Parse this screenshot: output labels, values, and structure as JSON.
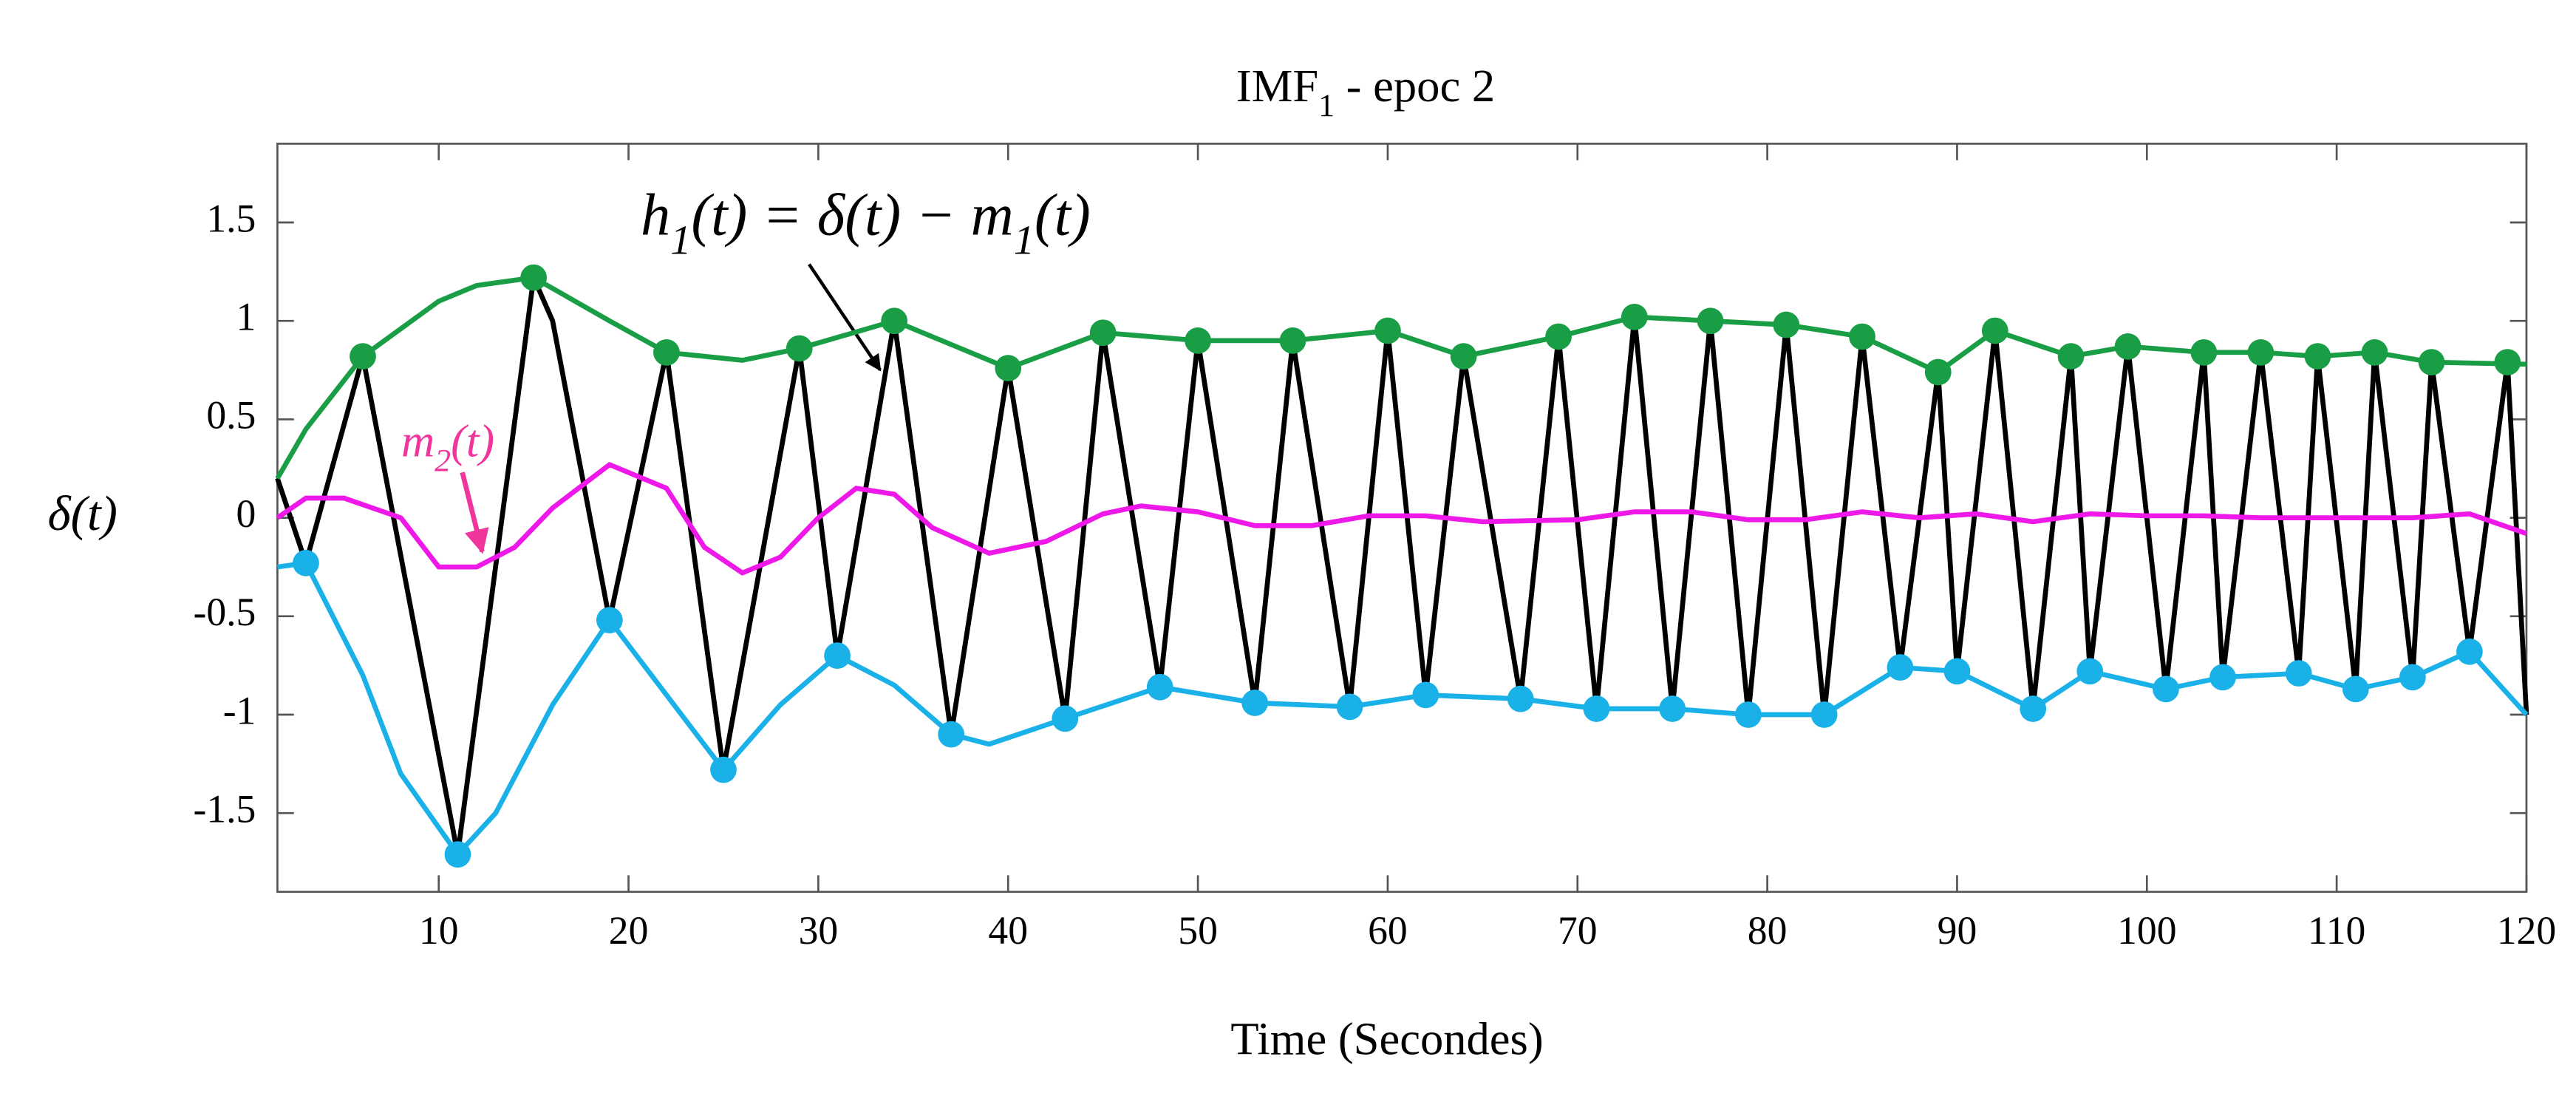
{
  "chart_data": {
    "type": "line",
    "title": {
      "parts": [
        "IMF",
        "1",
        " -  epoc 2"
      ]
    },
    "x_label": "Time (Secondes)",
    "y_label": "δ(t)",
    "annotations": [
      {
        "parts": [
          "h",
          "1",
          "(t) = δ(t) − m",
          "1",
          "(t)"
        ],
        "color": "#000000"
      },
      {
        "parts": [
          "m",
          "2",
          "(t)"
        ],
        "color": "#f0359c"
      }
    ],
    "xlim": [
      1.5,
      120
    ],
    "ylim": [
      -1.9,
      1.9
    ],
    "xticks": [
      10,
      20,
      30,
      40,
      50,
      60,
      70,
      80,
      90,
      100,
      110,
      120
    ],
    "yticks": [
      -1.5,
      -1,
      -0.5,
      0,
      0.5,
      1,
      1.5
    ],
    "grid": false,
    "series": [
      {
        "mode": "lines",
        "color": "#000000",
        "x": [
          1.5,
          3,
          6,
          11,
          15,
          16,
          19,
          22,
          25,
          29,
          31,
          34,
          37,
          40,
          43,
          45,
          48,
          50,
          53,
          55,
          58,
          60,
          62,
          64,
          67,
          69,
          71,
          73,
          75,
          77,
          79,
          81,
          83,
          85,
          87,
          89,
          90,
          92,
          94,
          96,
          97,
          99,
          101,
          103,
          104,
          106,
          108,
          109,
          111,
          112,
          114,
          115,
          117,
          119,
          120
        ],
        "values": [
          0.2,
          -0.23,
          0.82,
          -1.71,
          1.22,
          1.0,
          -0.52,
          0.84,
          -1.28,
          0.86,
          -0.7,
          1.0,
          -1.1,
          0.76,
          -1.02,
          0.94,
          -0.86,
          0.9,
          -0.94,
          0.9,
          -0.96,
          0.95,
          -0.9,
          0.82,
          -0.92,
          0.92,
          -0.97,
          1.02,
          -0.97,
          1.0,
          -1.0,
          0.98,
          -1.0,
          0.92,
          -0.76,
          0.74,
          -0.78,
          0.95,
          -0.97,
          0.82,
          -0.78,
          0.87,
          -0.87,
          0.84,
          -0.81,
          0.84,
          -0.79,
          0.82,
          -0.87,
          0.84,
          -0.81,
          0.79,
          -0.68,
          0.79,
          -1.0
        ]
      },
      {
        "mode": "lines",
        "color": "#1a9e45",
        "x": [
          1.5,
          3,
          6,
          10,
          12,
          15,
          19,
          22,
          26,
          29,
          34,
          37,
          40,
          45,
          50,
          55,
          60,
          64,
          69,
          73,
          77,
          81,
          85,
          89,
          92,
          96,
          99,
          103,
          106,
          109,
          112,
          115,
          120
        ],
        "values": [
          0.2,
          0.45,
          0.82,
          1.1,
          1.18,
          1.22,
          1.0,
          0.84,
          0.8,
          0.86,
          1.0,
          0.88,
          0.76,
          0.94,
          0.9,
          0.9,
          0.95,
          0.82,
          0.92,
          1.02,
          1.0,
          0.98,
          0.92,
          0.74,
          0.95,
          0.82,
          0.87,
          0.84,
          0.84,
          0.82,
          0.84,
          0.79,
          0.78
        ]
      },
      {
        "mode": "lines",
        "color": "#1ab0e8",
        "x": [
          1.5,
          3,
          6,
          8,
          11,
          13,
          16,
          19,
          22,
          25,
          28,
          31,
          34,
          37,
          39,
          43,
          48,
          53,
          58,
          62,
          67,
          71,
          75,
          79,
          83,
          87,
          90,
          94,
          97,
          101,
          104,
          108,
          111,
          114,
          117,
          120
        ],
        "values": [
          -0.25,
          -0.23,
          -0.8,
          -1.3,
          -1.71,
          -1.5,
          -0.95,
          -0.52,
          -0.9,
          -1.28,
          -0.95,
          -0.7,
          -0.85,
          -1.1,
          -1.15,
          -1.02,
          -0.86,
          -0.94,
          -0.96,
          -0.9,
          -0.92,
          -0.97,
          -0.97,
          -1.0,
          -1.0,
          -0.76,
          -0.78,
          -0.97,
          -0.78,
          -0.87,
          -0.81,
          -0.79,
          -0.87,
          -0.81,
          -0.68,
          -1.0
        ]
      },
      {
        "mode": "lines",
        "color": "#ee18e8",
        "x": [
          1.5,
          3,
          5,
          8,
          10,
          12,
          14,
          16,
          19,
          22,
          24,
          26,
          28,
          30,
          32,
          34,
          36,
          39,
          42,
          45,
          47,
          50,
          53,
          56,
          59,
          62,
          65,
          70,
          73,
          76,
          79,
          82,
          85,
          88,
          91,
          94,
          97,
          100,
          103,
          106,
          110,
          114,
          117,
          120
        ],
        "values": [
          0,
          0.1,
          0.1,
          0,
          -0.25,
          -0.25,
          -0.15,
          0.05,
          0.27,
          0.15,
          -0.15,
          -0.28,
          -0.2,
          0,
          0.15,
          0.12,
          -0.05,
          -0.18,
          -0.12,
          0.02,
          0.06,
          0.03,
          -0.04,
          -0.04,
          0.01,
          0.01,
          -0.02,
          -0.01,
          0.03,
          0.03,
          -0.01,
          -0.01,
          0.03,
          0,
          0.02,
          -0.02,
          0.02,
          0.01,
          0.01,
          0,
          0,
          0,
          0.02,
          -0.08
        ]
      },
      {
        "mode": "markers",
        "color": "#1a9e45",
        "x": [
          6,
          15,
          22,
          29,
          34,
          40,
          45,
          50,
          55,
          60,
          64,
          69,
          73,
          77,
          81,
          85,
          89,
          92,
          96,
          99,
          103,
          106,
          109,
          112,
          115,
          119
        ],
        "values": [
          0.82,
          1.22,
          0.84,
          0.86,
          1.0,
          0.76,
          0.94,
          0.9,
          0.9,
          0.95,
          0.82,
          0.92,
          1.02,
          1.0,
          0.98,
          0.92,
          0.74,
          0.95,
          0.82,
          0.87,
          0.84,
          0.84,
          0.82,
          0.84,
          0.79,
          0.79
        ]
      },
      {
        "mode": "markers",
        "color": "#1ab0e8",
        "x": [
          3,
          11,
          19,
          25,
          31,
          37,
          43,
          48,
          53,
          58,
          62,
          67,
          71,
          75,
          79,
          83,
          87,
          90,
          94,
          97,
          101,
          104,
          108,
          111,
          114,
          117
        ],
        "values": [
          -0.23,
          -1.71,
          -0.52,
          -1.28,
          -0.7,
          -1.1,
          -1.02,
          -0.86,
          -0.94,
          -0.96,
          -0.9,
          -0.92,
          -0.97,
          -0.97,
          -1.0,
          -1.0,
          -0.76,
          -0.78,
          -0.97,
          -0.78,
          -0.87,
          -0.81,
          -0.79,
          -0.87,
          -0.81,
          -0.68
        ]
      }
    ]
  }
}
